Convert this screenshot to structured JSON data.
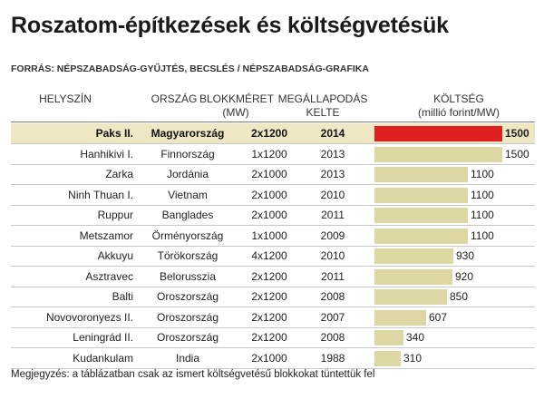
{
  "title": "Roszatom-építkezések és költségvetésük",
  "source": "FORRÁS: NÉPSZABADSÁG-GYŰJTÉS, BECSLÉS / NÉPSZABADSÁG-GRAFIKA",
  "headers": {
    "location": "HELYSZÍN",
    "country": "ORSZÁG",
    "block_size": "BLOKKMÉRET",
    "block_size_unit": "(MW)",
    "agreement": "MEGÁLLAPODÁS",
    "agreement_2": "KELTE",
    "cost": "KÖLTSÉG",
    "cost_unit": "(millió forint/MW)"
  },
  "note": "Megjegyzés: a táblázatban csak az ismert költségvetésű blokkokat tüntettük fel",
  "colors": {
    "highlight_bar": "#e02020",
    "bar": "#ddd7a4",
    "highlight_row": "#efe7c4"
  },
  "chart_data": {
    "type": "bar",
    "title": "Roszatom-építkezések és költségvetésük",
    "ylabel": "KÖLTSÉG (millió forint/MW)",
    "xlim": [
      0,
      1500
    ],
    "categories": [
      "Paks II.",
      "Hanhikivi I.",
      "Zarka",
      "Ninh Thuan I.",
      "Ruppur",
      "Metszamor",
      "Akkuyu",
      "Asztravec",
      "Balti",
      "Novovoronyezs II.",
      "Leningrád II.",
      "Kudankulam"
    ],
    "values": [
      1500,
      1500,
      1100,
      1100,
      1100,
      1100,
      930,
      920,
      850,
      607,
      340,
      310
    ],
    "rows": [
      {
        "name": "Paks II.",
        "country": "Magyarország",
        "mw": "2x1200",
        "year": "2014",
        "cost": 1500,
        "cost_label": "1500",
        "highlight": true
      },
      {
        "name": "Hanhikivi I.",
        "country": "Finnország",
        "mw": "1x1200",
        "year": "2013",
        "cost": 1500,
        "cost_label": "1500",
        "highlight": false
      },
      {
        "name": "Zarka",
        "country": "Jordánia",
        "mw": "2x1000",
        "year": "2013",
        "cost": 1100,
        "cost_label": "1100",
        "highlight": false
      },
      {
        "name": "Ninh Thuan I.",
        "country": "Vietnam",
        "mw": "2x1000",
        "year": "2010",
        "cost": 1100,
        "cost_label": "1100",
        "highlight": false
      },
      {
        "name": "Ruppur",
        "country": "Banglades",
        "mw": "2x1000",
        "year": "2011",
        "cost": 1100,
        "cost_label": "1100",
        "highlight": false
      },
      {
        "name": "Metszamor",
        "country": "Örményország",
        "mw": "1x1000",
        "year": "2009",
        "cost": 1100,
        "cost_label": "1100",
        "highlight": false
      },
      {
        "name": "Akkuyu",
        "country": "Törökország",
        "mw": "4x1200",
        "year": "2010",
        "cost": 930,
        "cost_label": "930",
        "highlight": false
      },
      {
        "name": "Asztravec",
        "country": "Belorusszia",
        "mw": "2x1200",
        "year": "2011",
        "cost": 920,
        "cost_label": "920",
        "highlight": false
      },
      {
        "name": "Balti",
        "country": "Oroszország",
        "mw": "2x1200",
        "year": "2008",
        "cost": 850,
        "cost_label": "850",
        "highlight": false
      },
      {
        "name": "Novovoronyezs II.",
        "country": "Oroszország",
        "mw": "2x1200",
        "year": "2007",
        "cost": 607,
        "cost_label": "607",
        "highlight": false
      },
      {
        "name": "Leningrád II.",
        "country": "Oroszország",
        "mw": "2x1200",
        "year": "2008",
        "cost": 340,
        "cost_label": "340",
        "highlight": false
      },
      {
        "name": "Kudankulam",
        "country": "India",
        "mw": "2x1000",
        "year": "1988",
        "cost": 310,
        "cost_label": "310",
        "highlight": false
      }
    ]
  }
}
